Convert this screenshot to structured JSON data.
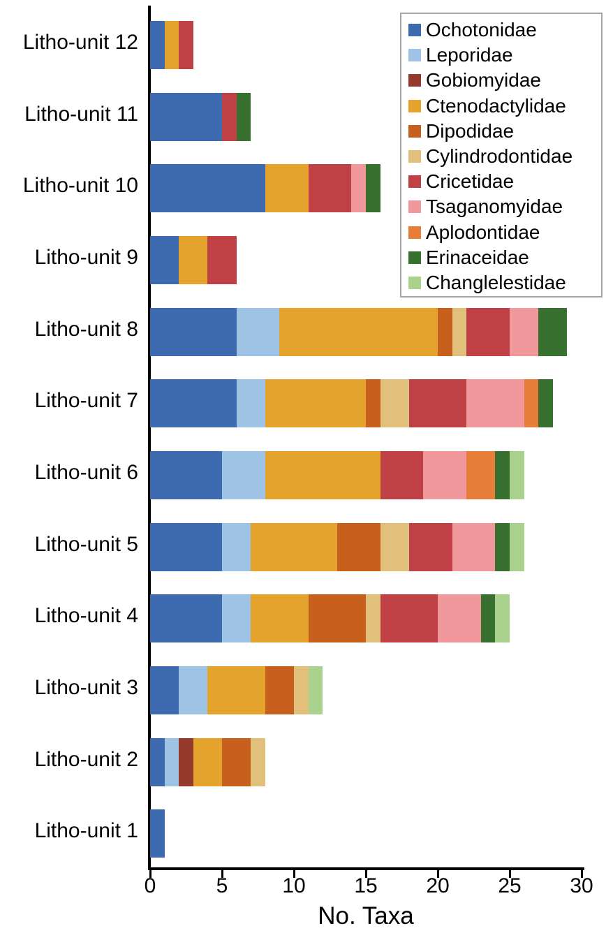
{
  "chart_data": {
    "type": "bar",
    "orientation": "horizontal",
    "stacked": true,
    "title": "",
    "xlabel": "No. Taxa",
    "ylabel": "",
    "xlim": [
      0,
      30
    ],
    "xticks": [
      0,
      5,
      10,
      15,
      20,
      25,
      30
    ],
    "grid": false,
    "legend_position": "top-right",
    "axis_color": "#000000",
    "categories": [
      "Litho-unit 12",
      "Litho-unit 11",
      "Litho-unit 10",
      "Litho-unit 9",
      "Litho-unit 8",
      "Litho-unit 7",
      "Litho-unit 6",
      "Litho-unit 5",
      "Litho-unit 4",
      "Litho-unit 3",
      "Litho-unit 2",
      "Litho-unit 1"
    ],
    "totals": [
      3,
      7,
      16,
      6,
      29,
      28,
      26,
      26,
      25,
      12,
      8,
      1
    ],
    "series": [
      {
        "name": "Ochotonidae",
        "color": "#3E6BB0",
        "values": [
          1,
          5,
          8,
          2,
          6,
          6,
          5,
          5,
          5,
          2,
          1,
          1
        ]
      },
      {
        "name": "Leporidae",
        "color": "#9FC3E5",
        "values": [
          0,
          0,
          0,
          0,
          3,
          2,
          3,
          2,
          2,
          2,
          1,
          0
        ]
      },
      {
        "name": "Gobiomyidae",
        "color": "#94392B",
        "values": [
          0,
          0,
          0,
          0,
          0,
          0,
          0,
          0,
          0,
          0,
          1,
          0
        ]
      },
      {
        "name": "Ctenodactylidae",
        "color": "#E3A32D",
        "values": [
          1,
          0,
          3,
          2,
          11,
          7,
          8,
          6,
          4,
          4,
          2,
          0
        ]
      },
      {
        "name": "Dipodidae",
        "color": "#C75F1D",
        "values": [
          0,
          0,
          0,
          0,
          1,
          1,
          0,
          3,
          4,
          2,
          2,
          0
        ]
      },
      {
        "name": "Cylindrodontidae",
        "color": "#E0C07A",
        "values": [
          0,
          0,
          0,
          0,
          1,
          2,
          0,
          2,
          1,
          1,
          1,
          0
        ]
      },
      {
        "name": "Cricetidae",
        "color": "#BF4045",
        "values": [
          1,
          1,
          3,
          2,
          3,
          4,
          3,
          3,
          4,
          0,
          0,
          0
        ]
      },
      {
        "name": "Tsaganomyidae",
        "color": "#F0989B",
        "values": [
          0,
          0,
          1,
          0,
          2,
          4,
          3,
          3,
          3,
          0,
          0,
          0
        ]
      },
      {
        "name": "Aplodontidae",
        "color": "#E67E3A",
        "values": [
          0,
          0,
          0,
          0,
          0,
          1,
          2,
          0,
          0,
          0,
          0,
          0
        ]
      },
      {
        "name": "Erinaceidae",
        "color": "#38702F",
        "values": [
          0,
          1,
          1,
          0,
          2,
          1,
          1,
          1,
          1,
          0,
          0,
          0
        ]
      },
      {
        "name": "Changlelestidae",
        "color": "#ABD28D",
        "values": [
          0,
          0,
          0,
          0,
          0,
          0,
          1,
          1,
          1,
          1,
          0,
          0
        ]
      }
    ]
  }
}
